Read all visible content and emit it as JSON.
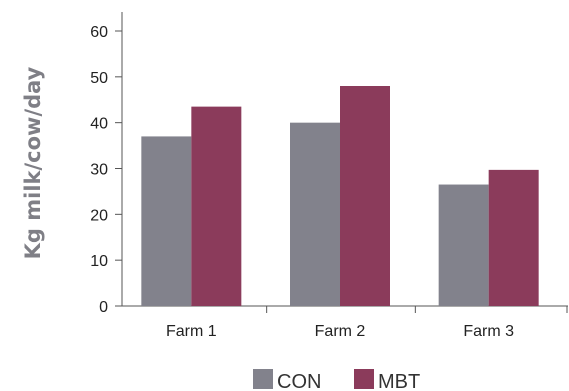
{
  "chart_data": {
    "type": "bar",
    "title": "",
    "xlabel": "",
    "ylabel": "Kg milk/cow/day",
    "ylim": [
      0,
      60
    ],
    "yticks": [
      0,
      10,
      20,
      30,
      40,
      50,
      60
    ],
    "categories": [
      "Farm 1",
      "Farm 2",
      "Farm 3"
    ],
    "series": [
      {
        "name": "CON",
        "color": "#82828c",
        "values": [
          37,
          40,
          26.5
        ]
      },
      {
        "name": "MBT",
        "color": "#8b3b5b",
        "values": [
          43.5,
          48,
          29.7
        ]
      }
    ],
    "grid": false,
    "legend": "bottom"
  }
}
